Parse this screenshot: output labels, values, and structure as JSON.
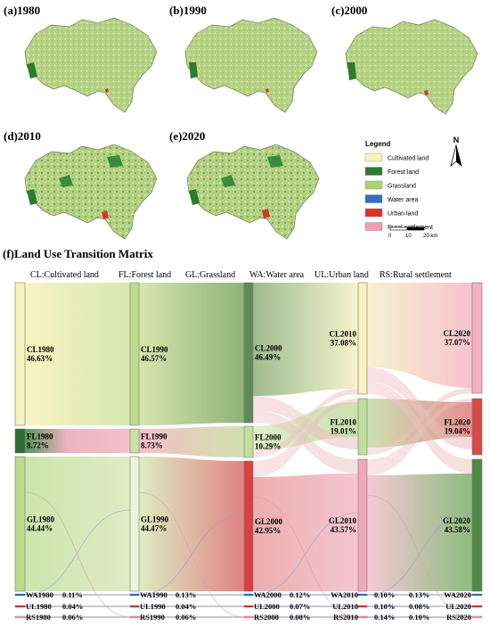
{
  "maps": {
    "panels": [
      {
        "label": "(a)1980"
      },
      {
        "label": "(b)1990"
      },
      {
        "label": "(c)2000"
      },
      {
        "label": "(d)2010"
      },
      {
        "label": "(e)2020"
      }
    ],
    "legend": {
      "title": "Legend",
      "items": [
        {
          "label": "Cultivated land",
          "color": "#f7f2b9"
        },
        {
          "label": "Forest land",
          "color": "#2e7a2e"
        },
        {
          "label": "Grassland",
          "color": "#a8d36e"
        },
        {
          "label": "Water area",
          "color": "#2f6fc4"
        },
        {
          "label": "Urban land",
          "color": "#d9342b"
        },
        {
          "label": "Rural settlement",
          "color": "#f19cb3"
        }
      ],
      "north": "N",
      "scale": {
        "t0": "0",
        "t1": "10",
        "t2": "20 km"
      }
    }
  },
  "matrix": {
    "title": "(f)Land Use Transition Matrix",
    "categories": [
      "CL:Cultivated land",
      "FL:Forest land",
      "GL:Grassland",
      "WA:Water area",
      "UL:Urban land",
      "RS:Rural settlement"
    ]
  },
  "chart_data": {
    "type": "sankey",
    "years": [
      1980,
      1990,
      2000,
      2010,
      2020
    ],
    "nodes": {
      "1980": [
        {
          "name": "CL1980",
          "value": "46.63%"
        },
        {
          "name": "FL1980",
          "value": "8.72%"
        },
        {
          "name": "GL1980",
          "value": "44.44%"
        },
        {
          "name": "WA1980",
          "value": "0.11%"
        },
        {
          "name": "UL1980",
          "value": "0.04%"
        },
        {
          "name": "RS1980",
          "value": "0.06%"
        }
      ],
      "1990": [
        {
          "name": "CL1990",
          "value": "46.57%"
        },
        {
          "name": "FL1990",
          "value": "8.73%"
        },
        {
          "name": "GL1990",
          "value": "44.47%"
        },
        {
          "name": "WA1990",
          "value": "0.13%"
        },
        {
          "name": "UL1990",
          "value": "0.04%"
        },
        {
          "name": "RS1990",
          "value": "0.06%"
        }
      ],
      "2000": [
        {
          "name": "CL2000",
          "value": "46.49%"
        },
        {
          "name": "FL2000",
          "value": "10.29%"
        },
        {
          "name": "GL2000",
          "value": "42.95%"
        },
        {
          "name": "WA2000",
          "value": "0.12%"
        },
        {
          "name": "UL2000",
          "value": "0.07%"
        },
        {
          "name": "RS2000",
          "value": "0.08%"
        }
      ],
      "2010": [
        {
          "name": "CL2010",
          "value": "37.08%"
        },
        {
          "name": "FL2010",
          "value": "19.01%"
        },
        {
          "name": "GL2010",
          "value": "43.57%"
        },
        {
          "name": "WA2010",
          "value": "0.10%"
        },
        {
          "name": "UL2010",
          "value": "0.10%"
        },
        {
          "name": "RS2010",
          "value": "0.14%"
        }
      ],
      "2020": [
        {
          "name": "CL2020",
          "value": "37.07%"
        },
        {
          "name": "FL2020",
          "value": "19.04%"
        },
        {
          "name": "GL2020",
          "value": "43.58%"
        },
        {
          "name": "WA2020",
          "value": "0.13%"
        },
        {
          "name": "UL2020",
          "value": "0.08%"
        },
        {
          "name": "RS2020",
          "value": "0.10%"
        }
      ]
    }
  }
}
